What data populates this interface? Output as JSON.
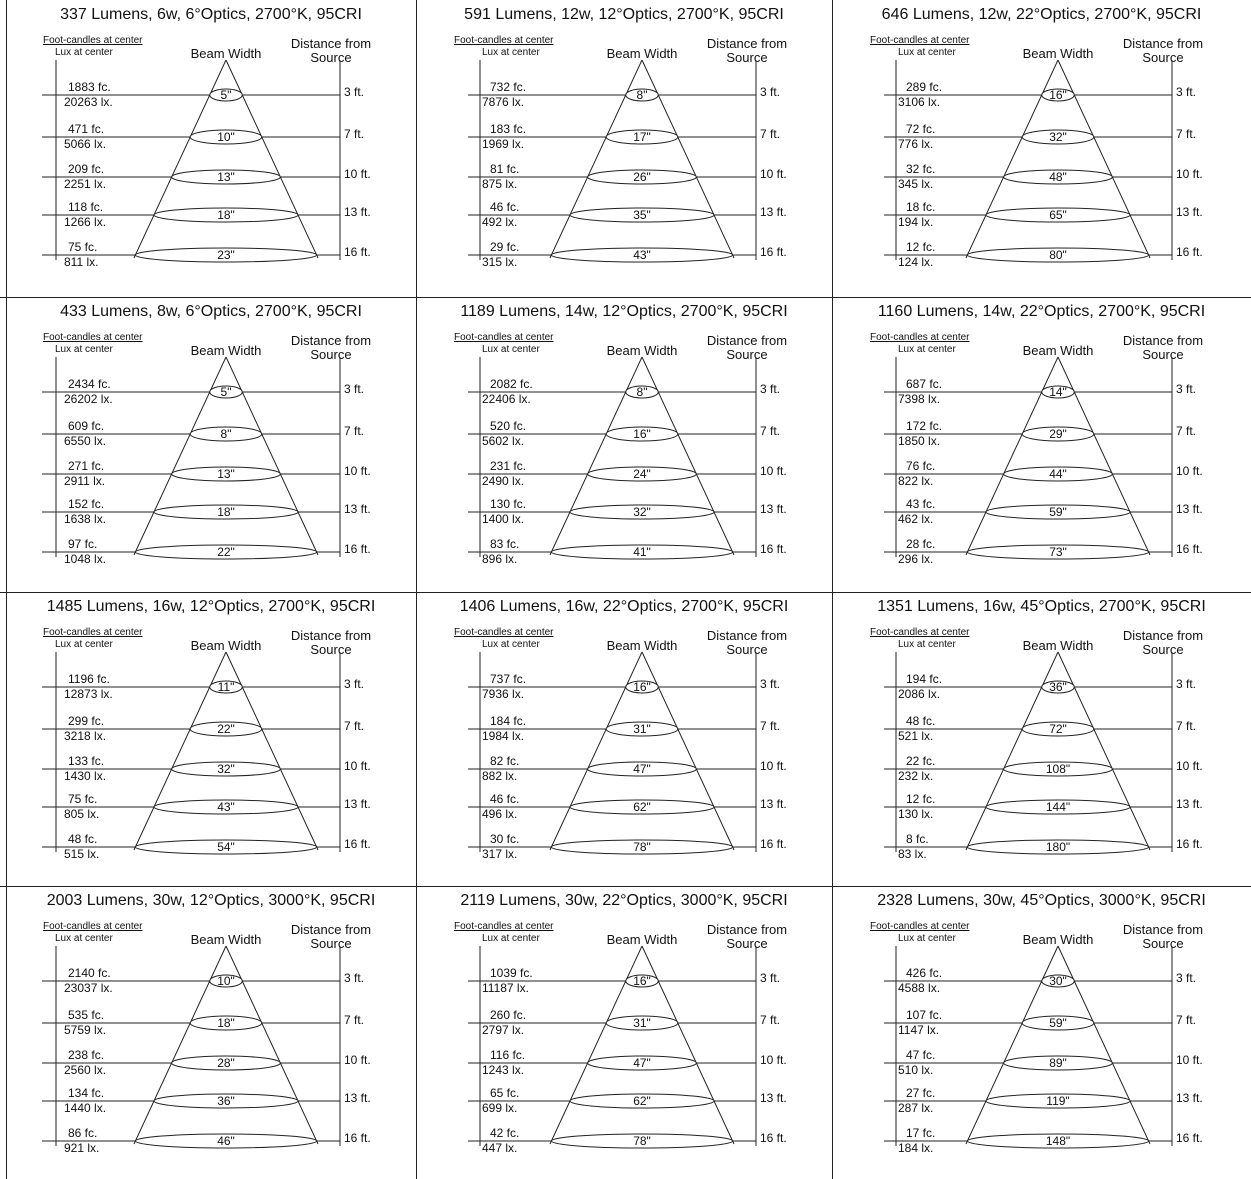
{
  "labels": {
    "fc_header": "Foot-candles at center",
    "lux_header": "Lux at center",
    "beam_header": "Beam Width",
    "distance_header_1": "Distance from",
    "distance_header_2": "Source"
  },
  "distances": [
    "3 ft.",
    "7 ft.",
    "10 ft.",
    "13 ft.",
    "16 ft."
  ],
  "panels": [
    {
      "title": "337 Lumens, 6w, 6°Optics, 2700°K, 95CRI",
      "fc": [
        "1883 fc.",
        "471 fc.",
        "209 fc.",
        "118 fc.",
        "75 fc."
      ],
      "lux": [
        "20263 lx.",
        "5066 lx.",
        "2251 lx.",
        "1266 lx.",
        "811 lx."
      ],
      "beam": [
        "5\"",
        "10\"",
        "13\"",
        "18\"",
        "23\""
      ]
    },
    {
      "title": "591 Lumens, 12w, 12°Optics, 2700°K, 95CRI",
      "fc": [
        "732 fc.",
        "183 fc.",
        "81 fc.",
        "46 fc.",
        "29 fc."
      ],
      "lux": [
        "7876 lx.",
        "1969 lx.",
        "875 lx.",
        "492 lx.",
        "315 lx."
      ],
      "beam": [
        "8\"",
        "17\"",
        "26\"",
        "35\"",
        "43\""
      ]
    },
    {
      "title": "646 Lumens, 12w, 22°Optics, 2700°K, 95CRI",
      "fc": [
        "289 fc.",
        "72 fc.",
        "32 fc.",
        "18 fc.",
        "12 fc."
      ],
      "lux": [
        "3106 lx.",
        "776 lx.",
        "345 lx.",
        "194 lx.",
        "124 lx."
      ],
      "beam": [
        "16\"",
        "32\"",
        "48\"",
        "65\"",
        "80\""
      ]
    },
    {
      "title": "433 Lumens, 8w, 6°Optics, 2700°K, 95CRI",
      "fc": [
        "2434 fc.",
        "609 fc.",
        "271 fc.",
        "152 fc.",
        "97 fc."
      ],
      "lux": [
        "26202 lx.",
        "6550 lx.",
        "2911 lx.",
        "1638 lx.",
        "1048 lx."
      ],
      "beam": [
        "5\"",
        "8\"",
        "13\"",
        "18\"",
        "22\""
      ]
    },
    {
      "title": "1189 Lumens, 14w, 12°Optics, 2700°K, 95CRI",
      "fc": [
        "2082 fc.",
        "520 fc.",
        "231 fc.",
        "130 fc.",
        "83 fc."
      ],
      "lux": [
        "22406 lx.",
        "5602 lx.",
        "2490 lx.",
        "1400 lx.",
        "896 lx."
      ],
      "beam": [
        "8\"",
        "16\"",
        "24\"",
        "32\"",
        "41\""
      ]
    },
    {
      "title": "1160 Lumens, 14w, 22°Optics, 2700°K, 95CRI",
      "fc": [
        "687 fc.",
        "172 fc.",
        "76 fc.",
        "43 fc.",
        "28 fc."
      ],
      "lux": [
        "7398 lx.",
        "1850 lx.",
        "822 lx.",
        "462 lx.",
        "296 lx."
      ],
      "beam": [
        "14\"",
        "29\"",
        "44\"",
        "59\"",
        "73\""
      ]
    },
    {
      "title": "1485 Lumens, 16w, 12°Optics, 2700°K, 95CRI",
      "fc": [
        "1196 fc.",
        "299 fc.",
        "133 fc.",
        "75 fc.",
        "48 fc."
      ],
      "lux": [
        "12873 lx.",
        "3218 lx.",
        "1430 lx.",
        "805 lx.",
        "515 lx."
      ],
      "beam": [
        "11\"",
        "22\"",
        "32\"",
        "43\"",
        "54\""
      ]
    },
    {
      "title": "1406 Lumens, 16w, 22°Optics, 2700°K, 95CRI",
      "fc": [
        "737 fc.",
        "184 fc.",
        "82 fc.",
        "46 fc.",
        "30 fc."
      ],
      "lux": [
        "7936 lx.",
        "1984 lx.",
        "882 lx.",
        "496 lx.",
        "317 lx."
      ],
      "beam": [
        "16\"",
        "31\"",
        "47\"",
        "62\"",
        "78\""
      ]
    },
    {
      "title": "1351 Lumens, 16w, 45°Optics, 2700°K, 95CRI",
      "fc": [
        "194 fc.",
        "48 fc.",
        "22 fc.",
        "12 fc.",
        "8 fc."
      ],
      "lux": [
        "2086 lx.",
        "521 lx.",
        "232 lx.",
        "130 lx.",
        "83 lx."
      ],
      "beam": [
        "36\"",
        "72\"",
        "108\"",
        "144\"",
        "180\""
      ]
    },
    {
      "title": "2003 Lumens, 30w, 12°Optics, 3000°K, 95CRI",
      "fc": [
        "2140 fc.",
        "535 fc.",
        "238 fc.",
        "134 fc.",
        "86 fc."
      ],
      "lux": [
        "23037 lx.",
        "5759 lx.",
        "2560 lx.",
        "1440 lx.",
        "921 lx."
      ],
      "beam": [
        "10\"",
        "18\"",
        "28\"",
        "36\"",
        "46\""
      ]
    },
    {
      "title": "2119 Lumens, 30w, 22°Optics, 3000°K, 95CRI",
      "fc": [
        "1039 fc.",
        "260 fc.",
        "116 fc.",
        "65 fc.",
        "42 fc."
      ],
      "lux": [
        "11187 lx.",
        "2797 lx.",
        "1243 lx.",
        "699 lx.",
        "447 lx."
      ],
      "beam": [
        "16\"",
        "31\"",
        "47\"",
        "62\"",
        "78\""
      ]
    },
    {
      "title": "2328 Lumens, 30w, 45°Optics, 3000°K, 95CRI",
      "fc": [
        "426 fc.",
        "107 fc.",
        "47 fc.",
        "27 fc.",
        "17 fc."
      ],
      "lux": [
        "4588 lx.",
        "1147 lx.",
        "510 lx.",
        "287 lx.",
        "184 lx."
      ],
      "beam": [
        "30\"",
        "59\"",
        "89\"",
        "119\"",
        "148\""
      ]
    }
  ]
}
